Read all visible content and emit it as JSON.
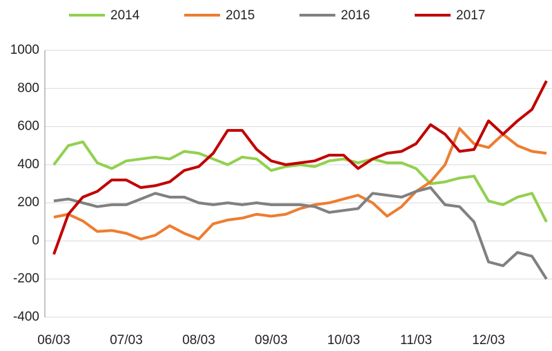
{
  "chart_data": {
    "type": "line",
    "categories": [
      "06/03",
      null,
      null,
      null,
      null,
      "07/03",
      null,
      null,
      null,
      null,
      "08/03",
      null,
      null,
      null,
      null,
      "09/03",
      null,
      null,
      null,
      null,
      "10/03",
      null,
      null,
      null,
      null,
      "11/03",
      null,
      null,
      null,
      null,
      "12/03",
      null,
      null,
      null,
      null
    ],
    "series": [
      {
        "name": "2014",
        "color": "#92d050",
        "values": [
          400,
          500,
          520,
          410,
          380,
          420,
          430,
          440,
          430,
          470,
          460,
          430,
          400,
          440,
          430,
          370,
          390,
          400,
          390,
          420,
          430,
          410,
          430,
          410,
          410,
          380,
          300,
          310,
          330,
          340,
          210,
          190,
          230,
          250,
          100
        ]
      },
      {
        "name": "2015",
        "color": "#ed7d31",
        "values": [
          125,
          140,
          105,
          50,
          55,
          40,
          10,
          30,
          80,
          40,
          10,
          90,
          110,
          120,
          140,
          130,
          140,
          170,
          190,
          200,
          220,
          240,
          200,
          130,
          180,
          260,
          310,
          400,
          590,
          510,
          490,
          560,
          500,
          470,
          460
        ]
      },
      {
        "name": "2016",
        "color": "#808080",
        "values": [
          210,
          220,
          200,
          180,
          190,
          190,
          220,
          250,
          230,
          230,
          200,
          190,
          200,
          190,
          200,
          190,
          190,
          190,
          180,
          150,
          160,
          170,
          250,
          240,
          230,
          260,
          280,
          190,
          180,
          100,
          -110,
          -130,
          -60,
          -80,
          -200
        ]
      },
      {
        "name": "2017",
        "color": "#c00000",
        "values": [
          -70,
          140,
          230,
          260,
          320,
          320,
          280,
          290,
          310,
          370,
          390,
          460,
          580,
          580,
          480,
          420,
          400,
          410,
          420,
          450,
          450,
          380,
          430,
          460,
          470,
          510,
          610,
          560,
          470,
          480,
          630,
          560,
          630,
          690,
          840
        ]
      }
    ],
    "ylim": [
      -400,
      1000
    ],
    "yticks": [
      -400,
      -200,
      0,
      200,
      400,
      600,
      800,
      1000
    ],
    "grid": true,
    "legend": "top"
  }
}
